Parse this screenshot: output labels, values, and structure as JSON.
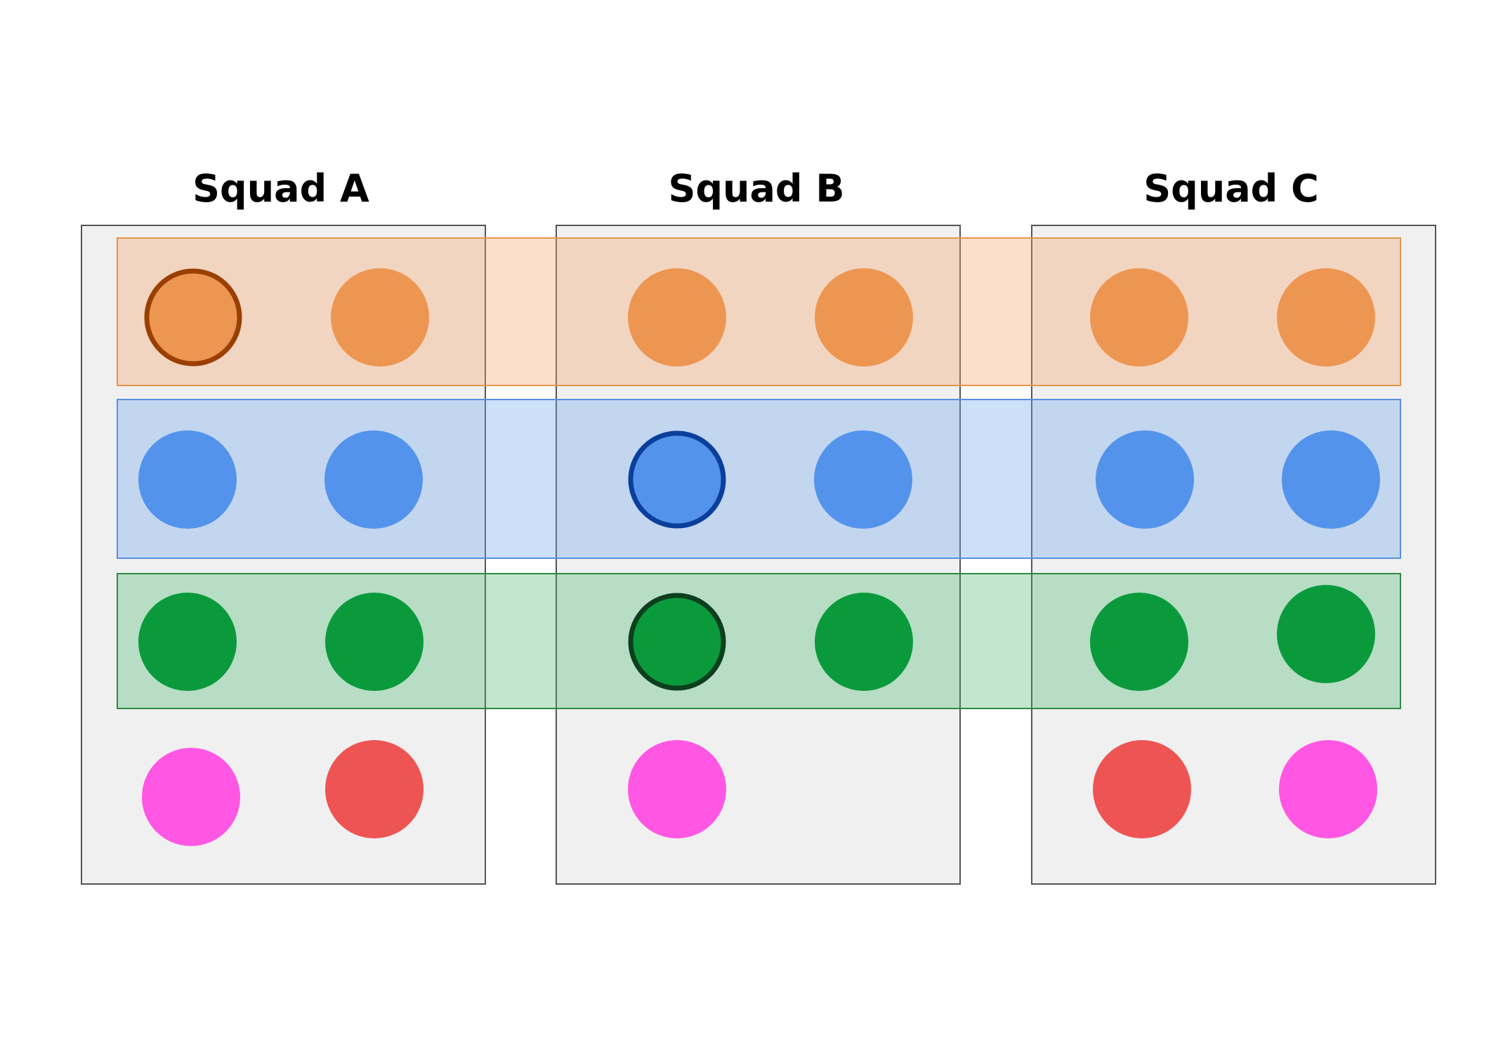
{
  "squads": [
    {
      "title": "Squad A"
    },
    {
      "title": "Squad B"
    },
    {
      "title": "Squad C"
    }
  ],
  "lanes": [
    {
      "color": "#ED9652",
      "outline": "#9A3F00"
    },
    {
      "color": "#5393EB",
      "outline": "#0B3F9C"
    },
    {
      "color": "#0A9A3C",
      "outline": "#0C3F1E"
    }
  ],
  "extra_member_colors": [
    "#FF57E3",
    "#EE5454"
  ],
  "panel_colors": {
    "fill": "#F0F0F0",
    "stroke": "#555555"
  }
}
